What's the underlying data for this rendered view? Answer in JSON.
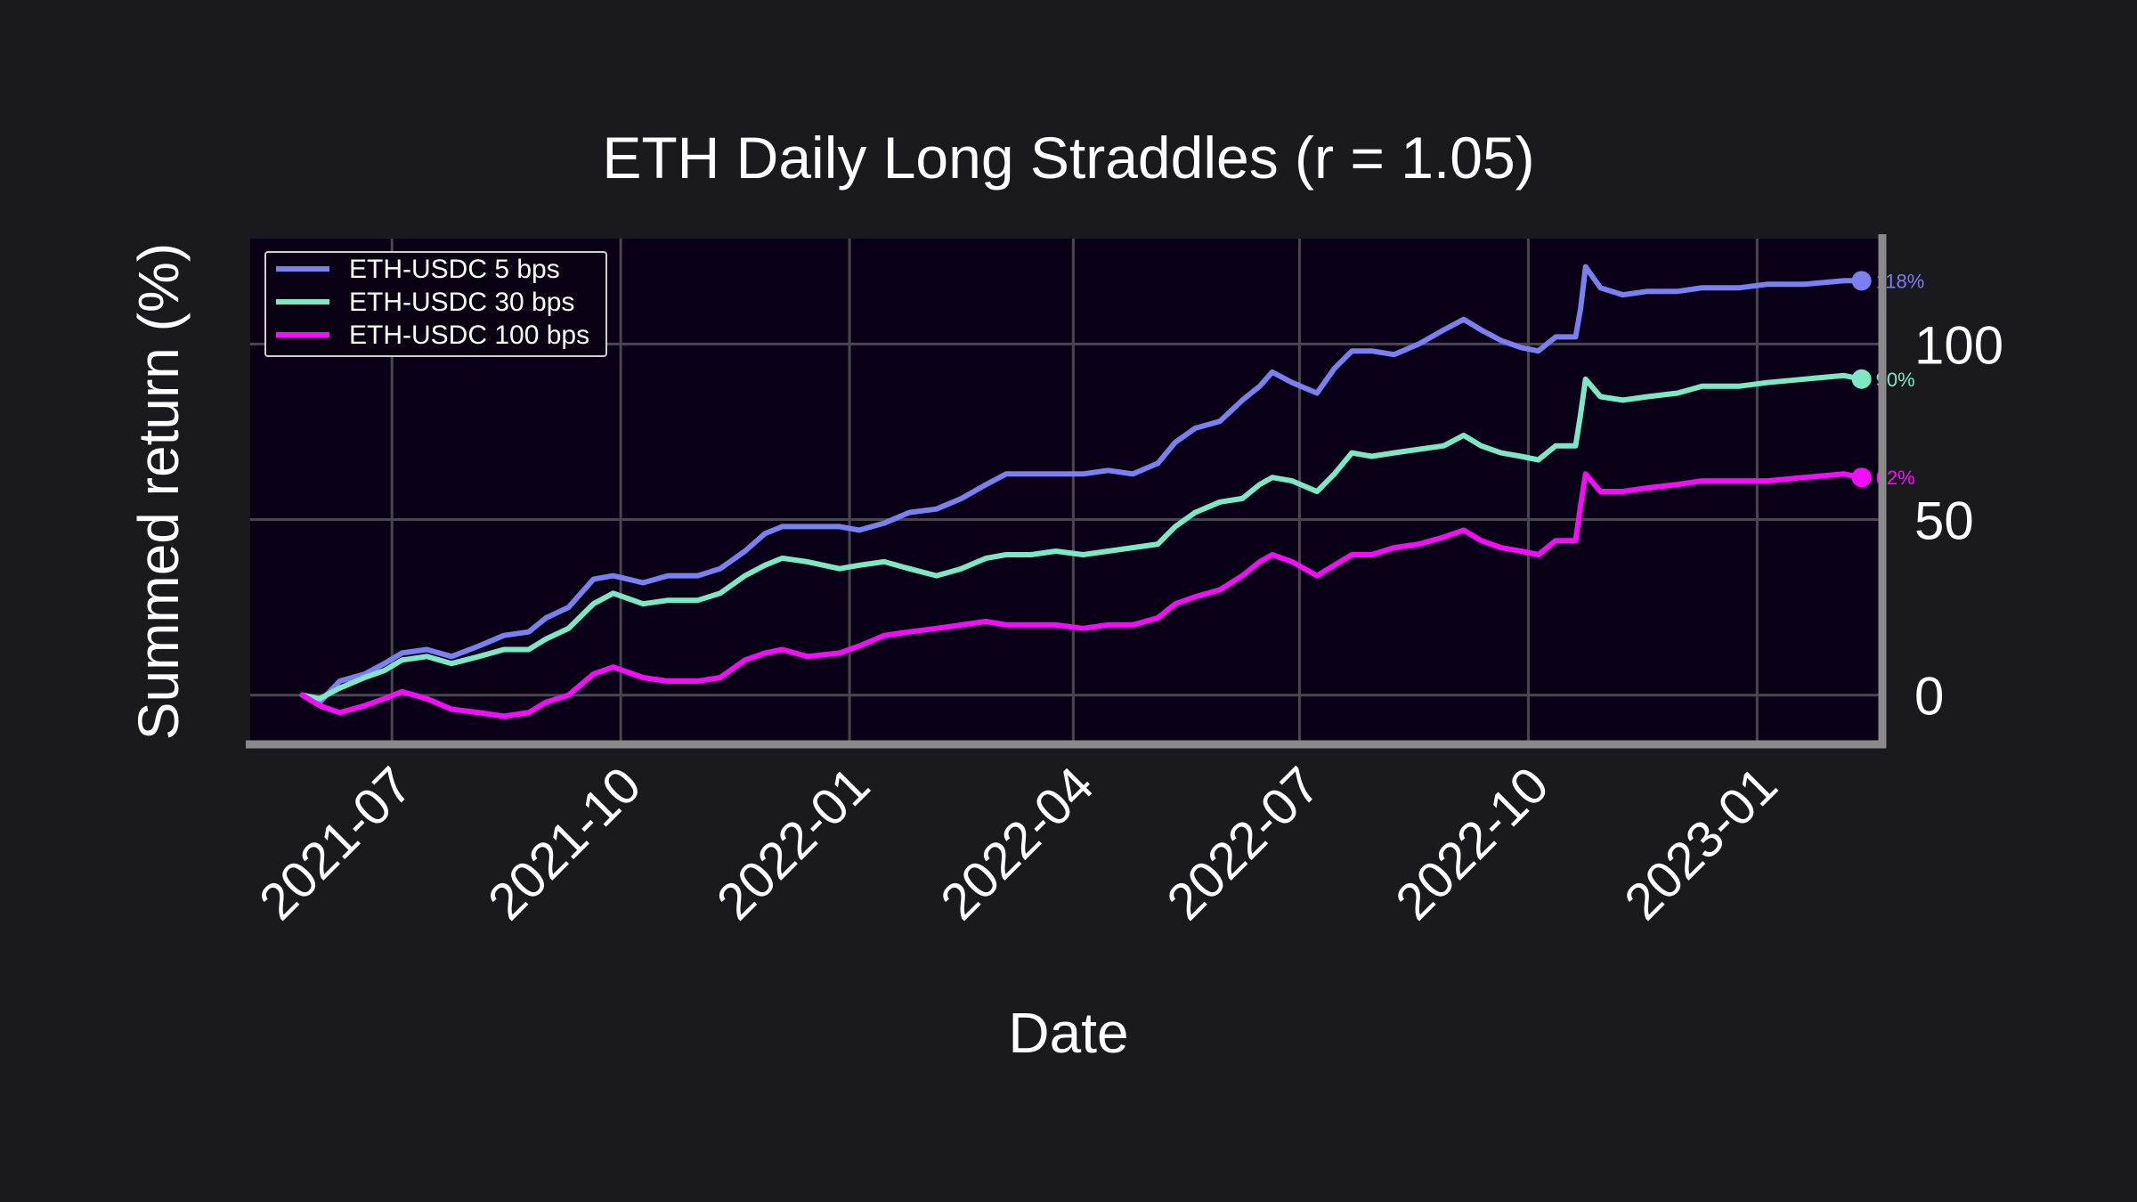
{
  "chart_data": {
    "type": "line",
    "title": "ETH Daily Long Straddles (r = 1.05)",
    "xlabel": "Date",
    "ylabel": "Summed return (%)",
    "x_range": [
      "2021-05-05",
      "2023-02-20"
    ],
    "ylim": [
      -13,
      130
    ],
    "grid": true,
    "legend_position": "top-left",
    "x_ticks": [
      {
        "date": "2021-07-01",
        "label": "2021-07"
      },
      {
        "date": "2021-10-01",
        "label": "2021-10"
      },
      {
        "date": "2022-01-01",
        "label": "2022-01"
      },
      {
        "date": "2022-04-01",
        "label": "2022-04"
      },
      {
        "date": "2022-07-01",
        "label": "2022-07"
      },
      {
        "date": "2022-10-01",
        "label": "2022-10"
      },
      {
        "date": "2023-01-01",
        "label": "2023-01"
      }
    ],
    "y_ticks": [
      {
        "value": 0,
        "label": "0"
      },
      {
        "value": 50,
        "label": "50"
      },
      {
        "value": 100,
        "label": "100"
      }
    ],
    "series": [
      {
        "name": "ETH-USDC 5 bps",
        "color": "#7b7fef",
        "end_label": "118%",
        "points": [
          [
            "2021-05-26",
            0
          ],
          [
            "2021-06-02",
            -2
          ],
          [
            "2021-06-10",
            4
          ],
          [
            "2021-06-20",
            6
          ],
          [
            "2021-06-28",
            9
          ],
          [
            "2021-07-05",
            12
          ],
          [
            "2021-07-15",
            13
          ],
          [
            "2021-07-25",
            11
          ],
          [
            "2021-08-05",
            14
          ],
          [
            "2021-08-15",
            17
          ],
          [
            "2021-08-25",
            18
          ],
          [
            "2021-09-01",
            22
          ],
          [
            "2021-09-10",
            25
          ],
          [
            "2021-09-20",
            33
          ],
          [
            "2021-09-28",
            34
          ],
          [
            "2021-10-10",
            32
          ],
          [
            "2021-10-20",
            34
          ],
          [
            "2021-11-01",
            34
          ],
          [
            "2021-11-10",
            36
          ],
          [
            "2021-11-20",
            41
          ],
          [
            "2021-11-28",
            46
          ],
          [
            "2021-12-05",
            48
          ],
          [
            "2021-12-15",
            48
          ],
          [
            "2021-12-28",
            48
          ],
          [
            "2022-01-05",
            47
          ],
          [
            "2022-01-15",
            49
          ],
          [
            "2022-01-25",
            52
          ],
          [
            "2022-02-05",
            53
          ],
          [
            "2022-02-15",
            56
          ],
          [
            "2022-02-25",
            60
          ],
          [
            "2022-03-05",
            63
          ],
          [
            "2022-03-15",
            63
          ],
          [
            "2022-03-25",
            63
          ],
          [
            "2022-04-05",
            63
          ],
          [
            "2022-04-15",
            64
          ],
          [
            "2022-04-25",
            63
          ],
          [
            "2022-05-05",
            66
          ],
          [
            "2022-05-12",
            72
          ],
          [
            "2022-05-20",
            76
          ],
          [
            "2022-05-30",
            78
          ],
          [
            "2022-06-08",
            84
          ],
          [
            "2022-06-15",
            88
          ],
          [
            "2022-06-20",
            92
          ],
          [
            "2022-06-28",
            89
          ],
          [
            "2022-07-08",
            86
          ],
          [
            "2022-07-15",
            93
          ],
          [
            "2022-07-22",
            98
          ],
          [
            "2022-07-30",
            98
          ],
          [
            "2022-08-08",
            97
          ],
          [
            "2022-08-18",
            100
          ],
          [
            "2022-08-28",
            104
          ],
          [
            "2022-09-05",
            107
          ],
          [
            "2022-09-12",
            104
          ],
          [
            "2022-09-20",
            101
          ],
          [
            "2022-09-28",
            99
          ],
          [
            "2022-10-05",
            98
          ],
          [
            "2022-10-12",
            102
          ],
          [
            "2022-10-20",
            102
          ],
          [
            "2022-10-22",
            110
          ],
          [
            "2022-10-24",
            122
          ],
          [
            "2022-10-30",
            116
          ],
          [
            "2022-11-08",
            114
          ],
          [
            "2022-11-18",
            115
          ],
          [
            "2022-11-30",
            115
          ],
          [
            "2022-12-10",
            116
          ],
          [
            "2022-12-25",
            116
          ],
          [
            "2023-01-05",
            117
          ],
          [
            "2023-01-20",
            117
          ],
          [
            "2023-02-05",
            118
          ],
          [
            "2023-02-12",
            118
          ]
        ]
      },
      {
        "name": "ETH-USDC 30 bps",
        "color": "#7ee8c4",
        "end_label": "90%",
        "points": [
          [
            "2021-05-26",
            0
          ],
          [
            "2021-06-02",
            -1
          ],
          [
            "2021-06-10",
            2
          ],
          [
            "2021-06-20",
            5
          ],
          [
            "2021-06-28",
            7
          ],
          [
            "2021-07-05",
            10
          ],
          [
            "2021-07-15",
            11
          ],
          [
            "2021-07-25",
            9
          ],
          [
            "2021-08-05",
            11
          ],
          [
            "2021-08-15",
            13
          ],
          [
            "2021-08-25",
            13
          ],
          [
            "2021-09-01",
            16
          ],
          [
            "2021-09-10",
            19
          ],
          [
            "2021-09-20",
            26
          ],
          [
            "2021-09-28",
            29
          ],
          [
            "2021-10-10",
            26
          ],
          [
            "2021-10-20",
            27
          ],
          [
            "2021-11-01",
            27
          ],
          [
            "2021-11-10",
            29
          ],
          [
            "2021-11-20",
            34
          ],
          [
            "2021-11-28",
            37
          ],
          [
            "2021-12-05",
            39
          ],
          [
            "2021-12-15",
            38
          ],
          [
            "2021-12-28",
            36
          ],
          [
            "2022-01-05",
            37
          ],
          [
            "2022-01-15",
            38
          ],
          [
            "2022-01-25",
            36
          ],
          [
            "2022-02-05",
            34
          ],
          [
            "2022-02-15",
            36
          ],
          [
            "2022-02-25",
            39
          ],
          [
            "2022-03-05",
            40
          ],
          [
            "2022-03-15",
            40
          ],
          [
            "2022-03-25",
            41
          ],
          [
            "2022-04-05",
            40
          ],
          [
            "2022-04-15",
            41
          ],
          [
            "2022-04-25",
            42
          ],
          [
            "2022-05-05",
            43
          ],
          [
            "2022-05-12",
            48
          ],
          [
            "2022-05-20",
            52
          ],
          [
            "2022-05-30",
            55
          ],
          [
            "2022-06-08",
            56
          ],
          [
            "2022-06-15",
            60
          ],
          [
            "2022-06-20",
            62
          ],
          [
            "2022-06-28",
            61
          ],
          [
            "2022-07-08",
            58
          ],
          [
            "2022-07-15",
            63
          ],
          [
            "2022-07-22",
            69
          ],
          [
            "2022-07-30",
            68
          ],
          [
            "2022-08-08",
            69
          ],
          [
            "2022-08-18",
            70
          ],
          [
            "2022-08-28",
            71
          ],
          [
            "2022-09-05",
            74
          ],
          [
            "2022-09-12",
            71
          ],
          [
            "2022-09-20",
            69
          ],
          [
            "2022-09-28",
            68
          ],
          [
            "2022-10-05",
            67
          ],
          [
            "2022-10-12",
            71
          ],
          [
            "2022-10-20",
            71
          ],
          [
            "2022-10-22",
            80
          ],
          [
            "2022-10-24",
            90
          ],
          [
            "2022-10-30",
            85
          ],
          [
            "2022-11-08",
            84
          ],
          [
            "2022-11-18",
            85
          ],
          [
            "2022-11-30",
            86
          ],
          [
            "2022-12-10",
            88
          ],
          [
            "2022-12-25",
            88
          ],
          [
            "2023-01-05",
            89
          ],
          [
            "2023-01-20",
            90
          ],
          [
            "2023-02-05",
            91
          ],
          [
            "2023-02-12",
            90
          ]
        ]
      },
      {
        "name": "ETH-USDC 100 bps",
        "color": "#f20ef7",
        "end_label": "62%",
        "points": [
          [
            "2021-05-26",
            0
          ],
          [
            "2021-06-02",
            -3
          ],
          [
            "2021-06-10",
            -5
          ],
          [
            "2021-06-20",
            -3
          ],
          [
            "2021-06-28",
            -1
          ],
          [
            "2021-07-05",
            1
          ],
          [
            "2021-07-15",
            -1
          ],
          [
            "2021-07-25",
            -4
          ],
          [
            "2021-08-05",
            -5
          ],
          [
            "2021-08-15",
            -6
          ],
          [
            "2021-08-25",
            -5
          ],
          [
            "2021-09-01",
            -2
          ],
          [
            "2021-09-10",
            0
          ],
          [
            "2021-09-20",
            6
          ],
          [
            "2021-09-28",
            8
          ],
          [
            "2021-10-10",
            5
          ],
          [
            "2021-10-20",
            4
          ],
          [
            "2021-11-01",
            4
          ],
          [
            "2021-11-10",
            5
          ],
          [
            "2021-11-20",
            10
          ],
          [
            "2021-11-28",
            12
          ],
          [
            "2021-12-05",
            13
          ],
          [
            "2021-12-15",
            11
          ],
          [
            "2021-12-28",
            12
          ],
          [
            "2022-01-05",
            14
          ],
          [
            "2022-01-15",
            17
          ],
          [
            "2022-01-25",
            18
          ],
          [
            "2022-02-05",
            19
          ],
          [
            "2022-02-15",
            20
          ],
          [
            "2022-02-25",
            21
          ],
          [
            "2022-03-05",
            20
          ],
          [
            "2022-03-15",
            20
          ],
          [
            "2022-03-25",
            20
          ],
          [
            "2022-04-05",
            19
          ],
          [
            "2022-04-15",
            20
          ],
          [
            "2022-04-25",
            20
          ],
          [
            "2022-05-05",
            22
          ],
          [
            "2022-05-12",
            26
          ],
          [
            "2022-05-20",
            28
          ],
          [
            "2022-05-30",
            30
          ],
          [
            "2022-06-08",
            34
          ],
          [
            "2022-06-15",
            38
          ],
          [
            "2022-06-20",
            40
          ],
          [
            "2022-06-28",
            38
          ],
          [
            "2022-07-08",
            34
          ],
          [
            "2022-07-15",
            37
          ],
          [
            "2022-07-22",
            40
          ],
          [
            "2022-07-30",
            40
          ],
          [
            "2022-08-08",
            42
          ],
          [
            "2022-08-18",
            43
          ],
          [
            "2022-08-28",
            45
          ],
          [
            "2022-09-05",
            47
          ],
          [
            "2022-09-12",
            44
          ],
          [
            "2022-09-20",
            42
          ],
          [
            "2022-09-28",
            41
          ],
          [
            "2022-10-05",
            40
          ],
          [
            "2022-10-12",
            44
          ],
          [
            "2022-10-20",
            44
          ],
          [
            "2022-10-22",
            54
          ],
          [
            "2022-10-24",
            63
          ],
          [
            "2022-10-30",
            58
          ],
          [
            "2022-11-08",
            58
          ],
          [
            "2022-11-18",
            59
          ],
          [
            "2022-11-30",
            60
          ],
          [
            "2022-12-10",
            61
          ],
          [
            "2022-12-25",
            61
          ],
          [
            "2023-01-05",
            61
          ],
          [
            "2023-01-20",
            62
          ],
          [
            "2023-02-05",
            63
          ],
          [
            "2023-02-12",
            62
          ]
        ]
      }
    ]
  }
}
